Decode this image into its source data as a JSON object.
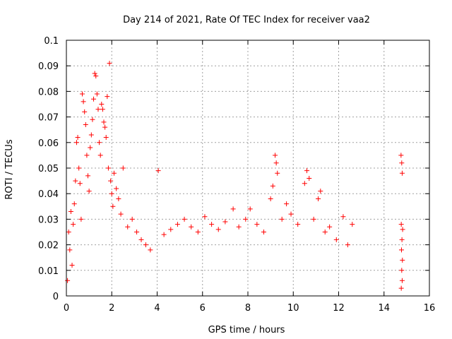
{
  "chart_data": {
    "type": "scatter",
    "title": "Day 214 of 2021, Rate Of TEC Index for receiver vaa2",
    "xlabel": "GPS time / hours",
    "ylabel": "ROTI / TECUs",
    "xlim": [
      0,
      16
    ],
    "ylim": [
      0,
      0.1
    ],
    "xticks": [
      0,
      2,
      4,
      6,
      8,
      10,
      12,
      14,
      16
    ],
    "xtick_labels": [
      "0",
      "2",
      "4",
      "6",
      "8",
      "10",
      "12",
      "14",
      "16"
    ],
    "yticks": [
      0,
      0.01,
      0.02,
      0.03,
      0.04,
      0.05,
      0.06,
      0.07,
      0.08,
      0.09,
      0.1
    ],
    "ytick_labels": [
      "0",
      "0.01",
      "0.02",
      "0.03",
      "0.04",
      "0.05",
      "0.06",
      "0.07",
      "0.08",
      "0.09",
      "0.1"
    ],
    "grid": true,
    "marker": "+",
    "marker_color": "#ff0000",
    "series": [
      {
        "name": "ROTI",
        "points": [
          [
            0.05,
            0.006
          ],
          [
            0.1,
            0.025
          ],
          [
            0.15,
            0.018
          ],
          [
            0.2,
            0.033
          ],
          [
            0.25,
            0.012
          ],
          [
            0.3,
            0.028
          ],
          [
            0.35,
            0.036
          ],
          [
            0.4,
            0.045
          ],
          [
            0.45,
            0.06
          ],
          [
            0.5,
            0.062
          ],
          [
            0.55,
            0.05
          ],
          [
            0.6,
            0.044
          ],
          [
            0.65,
            0.03
          ],
          [
            0.7,
            0.079
          ],
          [
            0.75,
            0.076
          ],
          [
            0.8,
            0.072
          ],
          [
            0.85,
            0.067
          ],
          [
            0.9,
            0.055
          ],
          [
            0.95,
            0.047
          ],
          [
            1.0,
            0.041
          ],
          [
            1.05,
            0.058
          ],
          [
            1.1,
            0.063
          ],
          [
            1.15,
            0.069
          ],
          [
            1.2,
            0.077
          ],
          [
            1.25,
            0.087
          ],
          [
            1.3,
            0.086
          ],
          [
            1.35,
            0.079
          ],
          [
            1.4,
            0.073
          ],
          [
            1.45,
            0.06
          ],
          [
            1.5,
            0.055
          ],
          [
            1.55,
            0.075
          ],
          [
            1.6,
            0.073
          ],
          [
            1.65,
            0.068
          ],
          [
            1.7,
            0.066
          ],
          [
            1.75,
            0.062
          ],
          [
            1.8,
            0.078
          ],
          [
            1.85,
            0.05
          ],
          [
            1.9,
            0.091
          ],
          [
            1.95,
            0.045
          ],
          [
            2.0,
            0.04
          ],
          [
            2.05,
            0.035
          ],
          [
            2.1,
            0.048
          ],
          [
            2.2,
            0.042
          ],
          [
            2.3,
            0.038
          ],
          [
            2.4,
            0.032
          ],
          [
            2.5,
            0.05
          ],
          [
            2.7,
            0.027
          ],
          [
            2.9,
            0.03
          ],
          [
            3.1,
            0.025
          ],
          [
            3.3,
            0.022
          ],
          [
            3.5,
            0.02
          ],
          [
            3.7,
            0.018
          ],
          [
            4.05,
            0.049
          ],
          [
            4.3,
            0.024
          ],
          [
            4.6,
            0.026
          ],
          [
            4.9,
            0.028
          ],
          [
            5.2,
            0.03
          ],
          [
            5.5,
            0.027
          ],
          [
            5.8,
            0.025
          ],
          [
            6.1,
            0.031
          ],
          [
            6.4,
            0.028
          ],
          [
            6.7,
            0.026
          ],
          [
            7.0,
            0.029
          ],
          [
            7.35,
            0.034
          ],
          [
            7.6,
            0.027
          ],
          [
            7.9,
            0.03
          ],
          [
            8.1,
            0.034
          ],
          [
            8.4,
            0.028
          ],
          [
            8.7,
            0.025
          ],
          [
            9.0,
            0.038
          ],
          [
            9.1,
            0.043
          ],
          [
            9.2,
            0.055
          ],
          [
            9.25,
            0.052
          ],
          [
            9.3,
            0.048
          ],
          [
            9.5,
            0.03
          ],
          [
            9.7,
            0.036
          ],
          [
            9.9,
            0.032
          ],
          [
            10.2,
            0.028
          ],
          [
            10.5,
            0.044
          ],
          [
            10.6,
            0.049
          ],
          [
            10.7,
            0.046
          ],
          [
            10.9,
            0.03
          ],
          [
            11.1,
            0.038
          ],
          [
            11.2,
            0.041
          ],
          [
            11.4,
            0.025
          ],
          [
            11.6,
            0.027
          ],
          [
            11.9,
            0.022
          ],
          [
            12.2,
            0.031
          ],
          [
            12.4,
            0.02
          ],
          [
            12.6,
            0.028
          ],
          [
            14.75,
            0.055
          ],
          [
            14.78,
            0.052
          ],
          [
            14.8,
            0.048
          ],
          [
            14.76,
            0.028
          ],
          [
            14.82,
            0.026
          ],
          [
            14.79,
            0.022
          ],
          [
            14.77,
            0.018
          ],
          [
            14.81,
            0.014
          ],
          [
            14.78,
            0.01
          ],
          [
            14.8,
            0.006
          ],
          [
            14.76,
            0.003
          ]
        ]
      }
    ]
  }
}
